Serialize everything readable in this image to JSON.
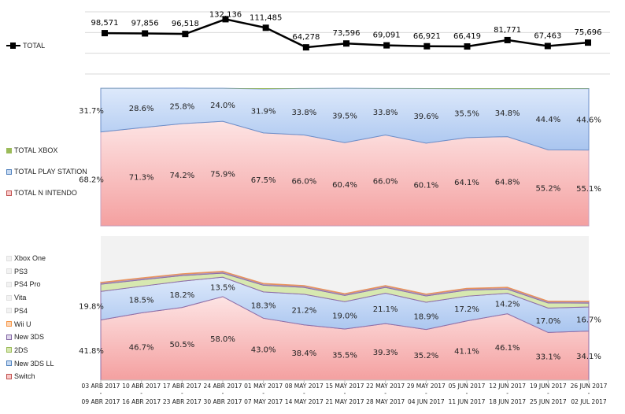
{
  "chart_data": [
    {
      "type": "line",
      "categories_start": [
        "03 ARB 2017",
        "10 ABR 2017",
        "17 ABR 2017",
        "24 ABR 2017",
        "01 MAY 2017",
        "08 MAY 2017",
        "15 MAY 2017",
        "22 MAY 2017",
        "29 MAY 2017",
        "05 JUN 2017",
        "12 JUN 2017",
        "19 JUN 2017",
        "26 JUN 2017"
      ],
      "categories_end": [
        "09 ABR 2017",
        "16 ABR 2017",
        "23 ABR 2017",
        "30 ABR 2017",
        "07 MAY 2017",
        "14 MAY 2017",
        "21 MAY 2017",
        "28 MAY 2017",
        "04 JUN 2017",
        "11 JUN 2017",
        "18 JUN 2017",
        "25 JUN 2017",
        "02 JUL 2017"
      ],
      "series": [
        {
          "name": "TOTAL",
          "values": [
            98571,
            97856,
            96518,
            132136,
            111485,
            64278,
            73596,
            69091,
            66921,
            66419,
            81771,
            67463,
            75696
          ],
          "labels": [
            "98,571",
            "97,856",
            "96,518",
            "132,136",
            "111,485",
            "64,278",
            "73,596",
            "69,091",
            "66,921",
            "66,419",
            "81,771",
            "67,463",
            "75,696"
          ],
          "color": "#000000"
        }
      ],
      "ylim": [
        0,
        150000
      ],
      "grid": true,
      "legend": "left"
    },
    {
      "type": "area",
      "stacked": "percent",
      "series": [
        {
          "name": "TOTAL N INTENDO",
          "values": [
            68.2,
            71.3,
            74.2,
            75.9,
            67.5,
            66.0,
            60.4,
            66.0,
            60.1,
            64.1,
            64.8,
            55.2,
            55.1
          ],
          "color": "#f4a6a6"
        },
        {
          "name": "TOTAL PLAY STATION",
          "values": [
            31.7,
            28.6,
            25.8,
            24.0,
            31.9,
            33.8,
            39.5,
            33.8,
            39.6,
            35.5,
            34.8,
            44.4,
            44.6
          ],
          "color": "#b4cdf0"
        },
        {
          "name": "TOTAL XBOX",
          "values": [
            0.1,
            0.1,
            0.0,
            0.1,
            0.6,
            0.2,
            0.1,
            0.2,
            0.3,
            0.4,
            0.4,
            0.4,
            0.3
          ],
          "color": "#9bbb59"
        }
      ],
      "ylim": [
        0,
        100
      ],
      "legend": "left"
    },
    {
      "type": "area",
      "stacked": "percent",
      "series": [
        {
          "name": "Switch",
          "values": [
            41.8,
            46.7,
            50.5,
            58.0,
            43.0,
            38.4,
            35.5,
            39.3,
            35.2,
            41.1,
            46.1,
            33.1,
            34.1
          ],
          "labeled": true,
          "color": "#f4a6a6"
        },
        {
          "name": "New 3DS LL",
          "values": [
            19.8,
            18.5,
            18.2,
            13.5,
            18.3,
            21.2,
            19.0,
            21.1,
            18.9,
            17.2,
            14.2,
            17.0,
            16.7
          ],
          "labeled": true,
          "color": "#b4cdf0"
        },
        {
          "name": "2DS",
          "values": [
            5.0,
            4.5,
            3.9,
            2.8,
            4.6,
            4.8,
            4.3,
            4.0,
            4.4,
            4.2,
            2.9,
            3.5,
            2.7
          ],
          "color": "#d7e8b0"
        },
        {
          "name": "New 3DS",
          "values": [
            1.0,
            1.0,
            1.0,
            1.0,
            1.0,
            1.0,
            1.0,
            1.0,
            1.0,
            1.0,
            1.0,
            1.0,
            1.0
          ],
          "color": "#b3a2c7"
        },
        {
          "name": "Wii U",
          "values": [
            0.6,
            0.6,
            0.6,
            0.6,
            0.6,
            0.6,
            0.6,
            0.6,
            0.6,
            0.6,
            0.6,
            0.6,
            0.6
          ],
          "color": "#f9b483"
        },
        {
          "name": "PS4",
          "values": [
            31.1,
            28.0,
            25.2,
            23.4,
            31.3,
            33.2,
            38.9,
            33.2,
            39.0,
            34.9,
            34.2,
            43.8,
            44.0
          ],
          "color": "#f2f2f2"
        },
        {
          "name": "Vita",
          "values": [
            0.2,
            0.2,
            0.2,
            0.2,
            0.2,
            0.2,
            0.2,
            0.2,
            0.2,
            0.2,
            0.2,
            0.2,
            0.2
          ],
          "color": "#f2f2f2"
        },
        {
          "name": "PS4 Pro",
          "values": [
            0.3,
            0.3,
            0.3,
            0.3,
            0.3,
            0.3,
            0.3,
            0.3,
            0.3,
            0.3,
            0.3,
            0.3,
            0.3
          ],
          "color": "#f2f2f2"
        },
        {
          "name": "PS3",
          "values": [
            0.1,
            0.1,
            0.1,
            0.1,
            0.1,
            0.1,
            0.1,
            0.1,
            0.1,
            0.1,
            0.1,
            0.1,
            0.1
          ],
          "color": "#f2f2f2"
        },
        {
          "name": "Xbox One",
          "values": [
            0.1,
            0.1,
            0.0,
            0.1,
            0.6,
            0.2,
            0.1,
            0.2,
            0.3,
            0.4,
            0.4,
            0.4,
            0.3
          ],
          "color": "#f2f2f2"
        }
      ],
      "ylim": [
        0,
        100
      ],
      "legend": "left"
    }
  ],
  "pct_labels": {
    "nintendo": [
      "68.2%",
      "71.3%",
      "74.2%",
      "75.9%",
      "67.5%",
      "66.0%",
      "60.4%",
      "66.0%",
      "60.1%",
      "64.1%",
      "64.8%",
      "55.2%",
      "55.1%"
    ],
    "playstation": [
      "31.7%",
      "28.6%",
      "25.8%",
      "24.0%",
      "31.9%",
      "33.8%",
      "39.5%",
      "33.8%",
      "39.6%",
      "35.5%",
      "34.8%",
      "44.4%",
      "44.6%"
    ],
    "switch": [
      "41.8%",
      "46.7%",
      "50.5%",
      "58.0%",
      "43.0%",
      "38.4%",
      "35.5%",
      "39.3%",
      "35.2%",
      "41.1%",
      "46.1%",
      "33.1%",
      "34.1%"
    ],
    "new3dsll": [
      "19.8%",
      "18.5%",
      "18.2%",
      "13.5%",
      "18.3%",
      "21.2%",
      "19.0%",
      "21.1%",
      "18.9%",
      "17.2%",
      "14.2%",
      "17.0%",
      "16.7%"
    ]
  },
  "axis_separator": "-"
}
